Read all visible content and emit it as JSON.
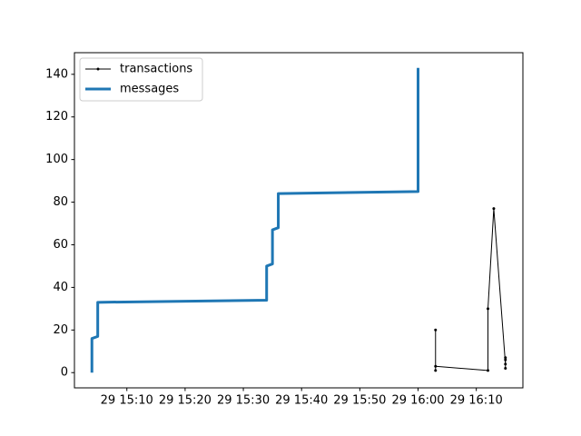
{
  "chart_data": {
    "type": "line",
    "series": [
      {
        "name": "transactions",
        "color": "#000000",
        "linewidth": 1,
        "marker": ".",
        "x": [
          "29 16:03",
          "29 16:03",
          "29 16:03",
          "29 16:12",
          "29 16:12",
          "29 16:13",
          "29 16:15",
          "29 16:15",
          "29 16:15",
          "29 16:15"
        ],
        "values": [
          20,
          1,
          3,
          1,
          30,
          77,
          4,
          2,
          7,
          6
        ]
      },
      {
        "name": "messages",
        "color": "#1f77b4",
        "linewidth": 3,
        "marker": null,
        "x": [
          "29 15:04",
          "29 15:04",
          "29 15:05",
          "29 15:05",
          "29 15:34",
          "29 15:34",
          "29 15:35",
          "29 15:35",
          "29 15:36",
          "29 15:36",
          "29 16:00",
          "29 16:00"
        ],
        "values": [
          0,
          16,
          17,
          33,
          34,
          50,
          51,
          67,
          68,
          84,
          85,
          143
        ]
      }
    ],
    "xlim": [
      "29 15:01",
      "29 16:18"
    ],
    "xticks": [
      "29 15:10",
      "29 15:20",
      "29 15:30",
      "29 15:40",
      "29 15:50",
      "29 16:00",
      "29 16:10"
    ],
    "ylim": [
      -7.15,
      150.15
    ],
    "yticks": [
      0,
      20,
      40,
      60,
      80,
      100,
      120,
      140
    ],
    "legend": "upper left"
  }
}
